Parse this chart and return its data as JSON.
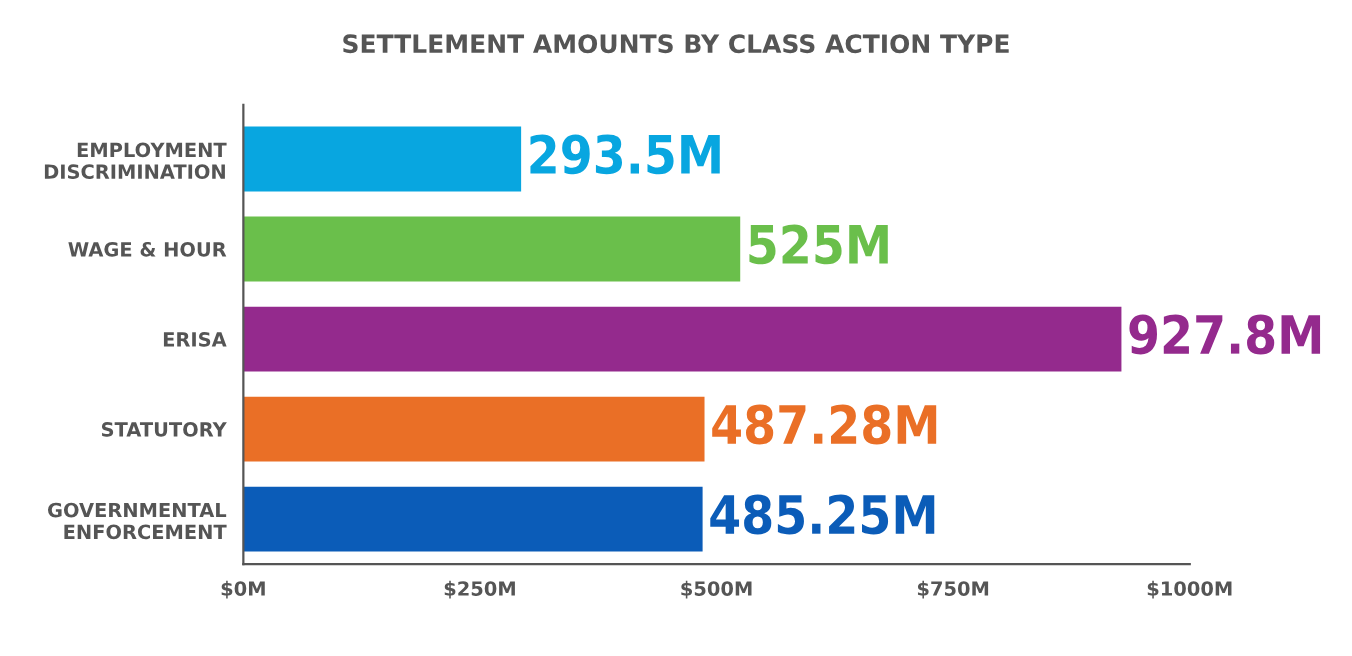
{
  "chart_data": {
    "type": "bar",
    "orientation": "horizontal",
    "title": "SETTLEMENT AMOUNTS BY CLASS ACTION TYPE",
    "categories": [
      "EMPLOYMENT\nDISCRIMINATION",
      "WAGE & HOUR",
      "ERISA",
      "STATUTORY",
      "GOVERNMENTAL\nENFORCEMENT"
    ],
    "values": [
      293.5,
      525,
      927.8,
      487.28,
      485.25
    ],
    "colors": [
      "#08a6e0",
      "#6abf4b",
      "#942a8d",
      "#ea6f26",
      "#0b5cb8"
    ],
    "value_labels": [
      "293.5M",
      "525M",
      "927.8M",
      "487.28M",
      "485.25M"
    ],
    "xlim": [
      0,
      1000
    ],
    "xticks": [
      {
        "value": 0,
        "label": "$0M"
      },
      {
        "value": 250,
        "label": "$250M"
      },
      {
        "value": 500,
        "label": "$500M"
      },
      {
        "value": 750,
        "label": "$750M"
      },
      {
        "value": 1000,
        "label": "$1000M"
      }
    ],
    "grid": false,
    "legend": false
  }
}
